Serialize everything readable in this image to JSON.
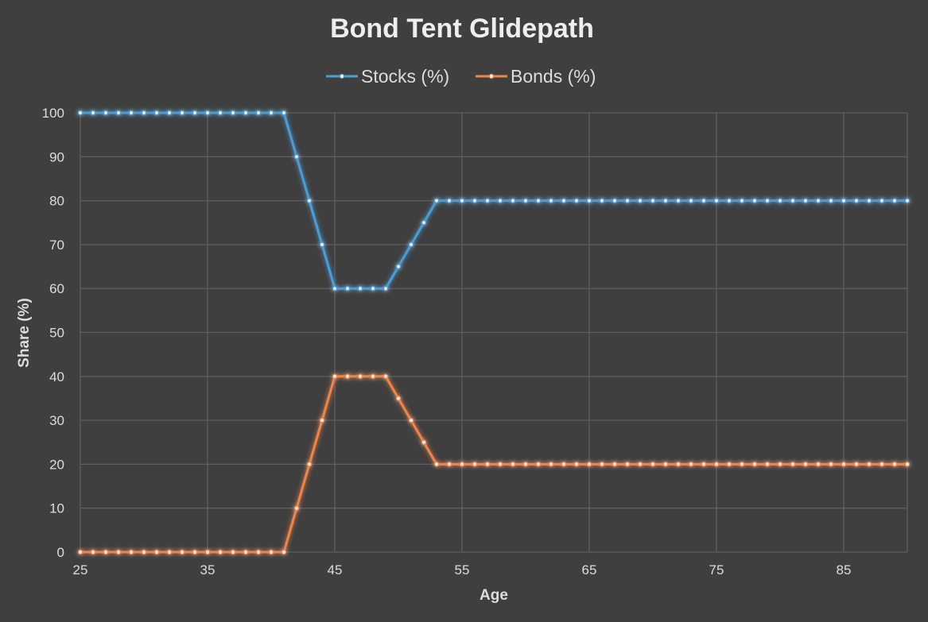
{
  "chart_data": {
    "type": "line",
    "title": "Bond Tent Glidepath",
    "xlabel": "Age",
    "ylabel": "Share (%)",
    "xlim": [
      25,
      90
    ],
    "ylim": [
      0,
      100
    ],
    "xticks": [
      25,
      35,
      45,
      55,
      65,
      75,
      85
    ],
    "yticks": [
      0,
      10,
      20,
      30,
      40,
      50,
      60,
      70,
      80,
      90,
      100
    ],
    "grid": true,
    "legend_position": "top",
    "x": [
      25,
      26,
      27,
      28,
      29,
      30,
      31,
      32,
      33,
      34,
      35,
      36,
      37,
      38,
      39,
      40,
      41,
      42,
      43,
      44,
      45,
      46,
      47,
      48,
      49,
      50,
      51,
      52,
      53,
      54,
      55,
      56,
      57,
      58,
      59,
      60,
      61,
      62,
      63,
      64,
      65,
      66,
      67,
      68,
      69,
      70,
      71,
      72,
      73,
      74,
      75,
      76,
      77,
      78,
      79,
      80,
      81,
      82,
      83,
      84,
      85,
      86,
      87,
      88,
      89,
      90
    ],
    "series": [
      {
        "name": "Stocks (%)",
        "color": "#4a9ed6",
        "values": [
          100,
          100,
          100,
          100,
          100,
          100,
          100,
          100,
          100,
          100,
          100,
          100,
          100,
          100,
          100,
          100,
          100,
          90,
          80,
          70,
          60,
          60,
          60,
          60,
          60,
          65,
          70,
          75,
          80,
          80,
          80,
          80,
          80,
          80,
          80,
          80,
          80,
          80,
          80,
          80,
          80,
          80,
          80,
          80,
          80,
          80,
          80,
          80,
          80,
          80,
          80,
          80,
          80,
          80,
          80,
          80,
          80,
          80,
          80,
          80,
          80,
          80,
          80,
          80,
          80,
          80
        ]
      },
      {
        "name": "Bonds (%)",
        "color": "#ef8546",
        "values": [
          0,
          0,
          0,
          0,
          0,
          0,
          0,
          0,
          0,
          0,
          0,
          0,
          0,
          0,
          0,
          0,
          0,
          10,
          20,
          30,
          40,
          40,
          40,
          40,
          40,
          35,
          30,
          25,
          20,
          20,
          20,
          20,
          20,
          20,
          20,
          20,
          20,
          20,
          20,
          20,
          20,
          20,
          20,
          20,
          20,
          20,
          20,
          20,
          20,
          20,
          20,
          20,
          20,
          20,
          20,
          20,
          20,
          20,
          20,
          20,
          20,
          20,
          20,
          20,
          20,
          20
        ]
      }
    ]
  }
}
